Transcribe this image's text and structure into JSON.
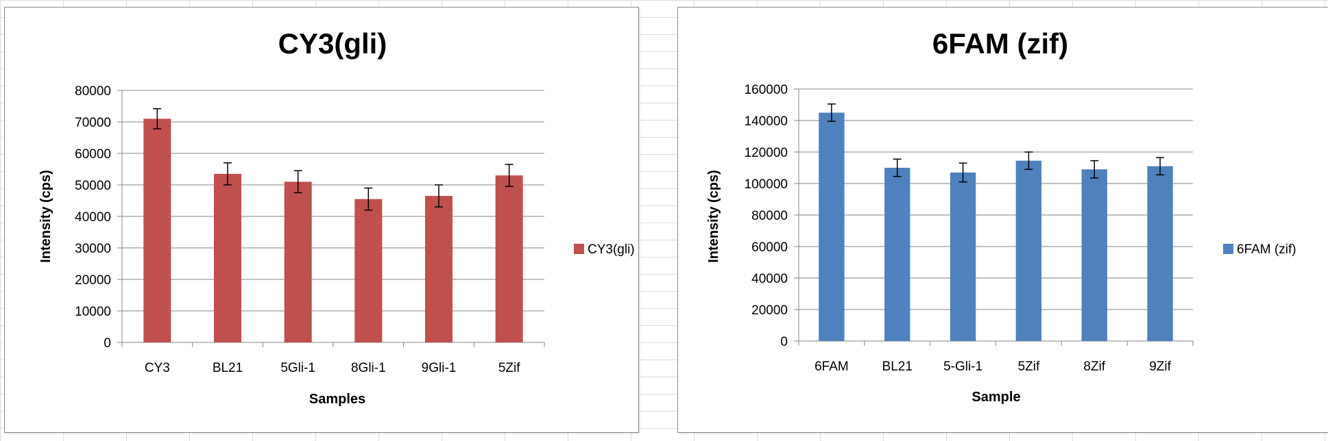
{
  "chart_data": [
    {
      "type": "bar",
      "title": "CY3(gli)",
      "xlabel": "Samples",
      "ylabel": "Intensity (cps)",
      "ylim": [
        0,
        80000
      ],
      "ystep": 10000,
      "categories": [
        "CY3",
        "BL21",
        "5Gli-1",
        "8Gli-1",
        "9Gli-1",
        "5Zif"
      ],
      "series": [
        {
          "name": "CY3(gli)",
          "color": "#c0504d",
          "values": [
            71000,
            53500,
            51000,
            45500,
            46500,
            53000
          ],
          "errors": [
            3200,
            3500,
            3500,
            3500,
            3500,
            3500
          ]
        }
      ],
      "grid": true,
      "legend_position": "right"
    },
    {
      "type": "bar",
      "title": "6FAM (zif)",
      "xlabel": "Sample",
      "ylabel": "Intensity (cps)",
      "ylim": [
        0,
        160000
      ],
      "ystep": 20000,
      "categories": [
        "6FAM",
        "BL21",
        "5-Gli-1",
        "5Zif",
        "8Zif",
        "9Zif"
      ],
      "series": [
        {
          "name": "6FAM (zif)",
          "color": "#4f81bd",
          "values": [
            145000,
            110000,
            107000,
            114500,
            109000,
            111000
          ],
          "errors": [
            5500,
            5500,
            6000,
            5500,
            5500,
            5500
          ]
        }
      ],
      "grid": true,
      "legend_position": "right"
    }
  ]
}
